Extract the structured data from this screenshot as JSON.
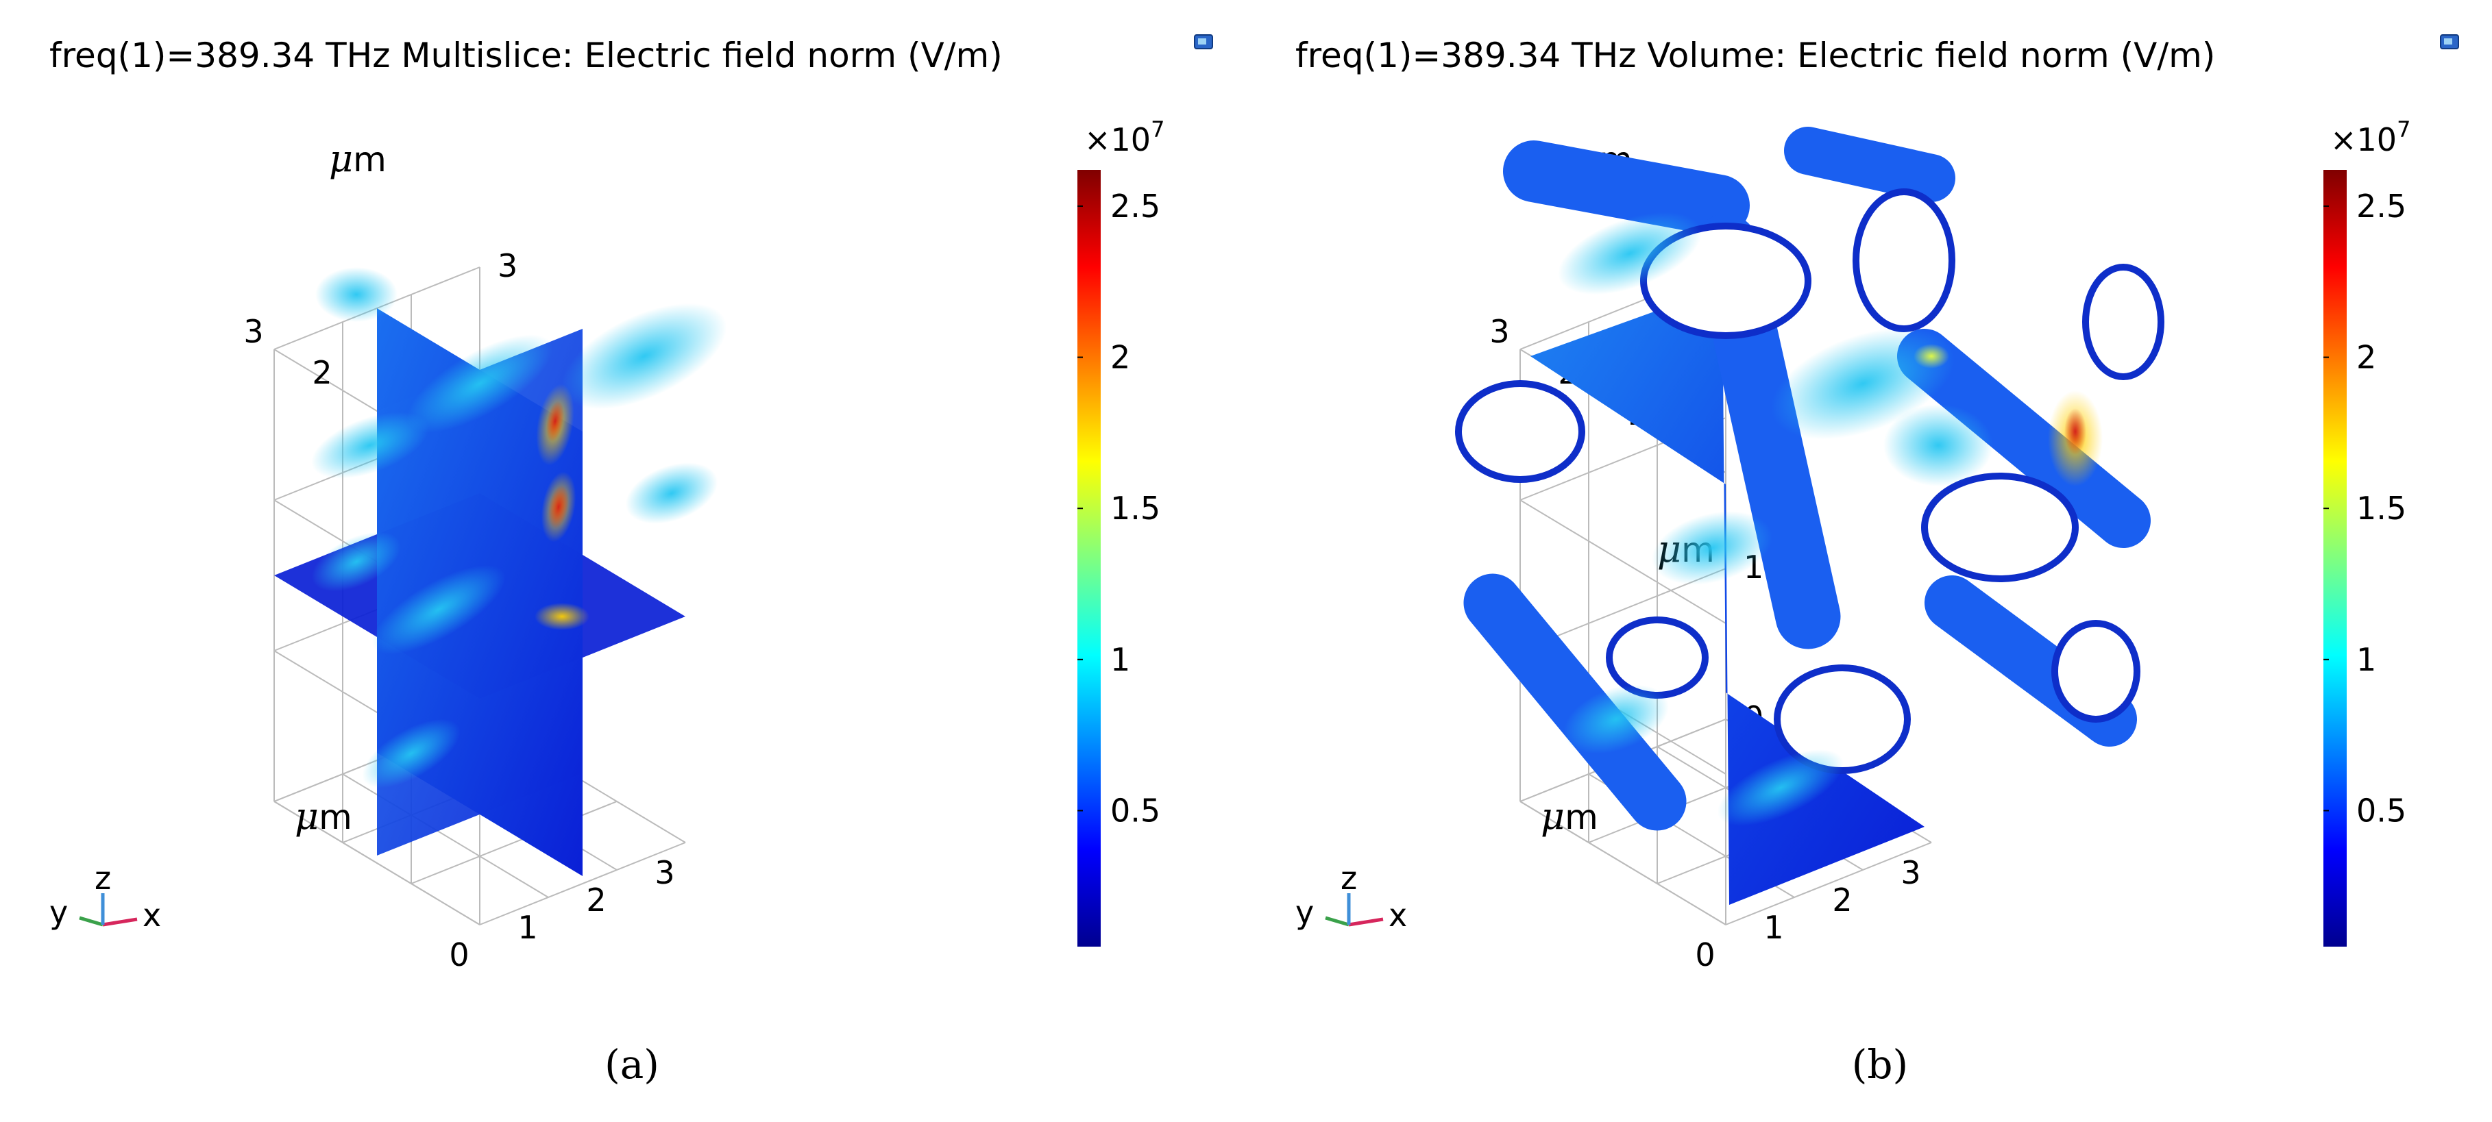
{
  "chart_data": [
    {
      "type": "heatmap",
      "id": "a",
      "title": "freq(1)=389.34 THz  Multislice: Electric field norm (V/m)",
      "plot_kind": "Multislice",
      "panel_label": "(a)",
      "axes": {
        "x": {
          "ticks": [
            "0",
            "1",
            "2",
            "3"
          ],
          "unit_mu": "μ",
          "unit_rest": "m",
          "range": [
            0,
            3
          ]
        },
        "y": {
          "ticks": [
            "0",
            "1",
            "2",
            "3"
          ],
          "unit_mu": "μ",
          "unit_rest": "m",
          "range": [
            0,
            3
          ]
        },
        "z": {
          "ticks": [
            "0",
            "1",
            "2",
            "3"
          ],
          "unit_mu": "μ",
          "unit_rest": "m",
          "range": [
            0,
            3
          ]
        }
      },
      "colorbar": {
        "multiplier": "×10",
        "exponent": "7",
        "ticks": [
          "0.5",
          "1",
          "1.5",
          "2",
          "2.5"
        ],
        "tick_values": [
          0.5,
          1,
          1.5,
          2,
          2.5
        ],
        "range": [
          0.05,
          2.62
        ],
        "colormap": "jet"
      },
      "grid": true,
      "triad": {
        "x": "x",
        "y": "y",
        "z": "z"
      }
    },
    {
      "type": "heatmap",
      "id": "b",
      "title": "freq(1)=389.34 THz  Volume: Electric field norm (V/m)",
      "plot_kind": "Volume",
      "panel_label": "(b)",
      "axes": {
        "x": {
          "ticks": [
            "0",
            "1",
            "2",
            "3"
          ],
          "unit_mu": "μ",
          "unit_rest": "m",
          "range": [
            0,
            3
          ]
        },
        "y": {
          "ticks": [
            "0",
            "1",
            "2",
            "3"
          ],
          "unit_mu": "μ",
          "unit_rest": "m",
          "range": [
            0,
            3
          ]
        },
        "z": {
          "ticks": [
            "0",
            "1",
            "2",
            "3"
          ],
          "unit_mu": "μ",
          "unit_rest": "m",
          "range": [
            0,
            3
          ]
        }
      },
      "colorbar": {
        "multiplier": "×10",
        "exponent": "7",
        "ticks": [
          "0.5",
          "1",
          "1.5",
          "2",
          "2.5"
        ],
        "tick_values": [
          0.5,
          1,
          1.5,
          2,
          2.5
        ],
        "range": [
          0.05,
          2.62
        ],
        "colormap": "jet"
      },
      "grid": true,
      "triad": {
        "x": "x",
        "y": "y",
        "z": "z"
      }
    }
  ],
  "colors": {
    "field_low": "#0a1fd6",
    "field_mid": "#25c6f2",
    "field_high": "#d21a1a",
    "grid": "#bbbbbb",
    "triad_x": "#d6265c",
    "triad_y": "#3aa14a",
    "triad_z": "#3f8fd8"
  }
}
